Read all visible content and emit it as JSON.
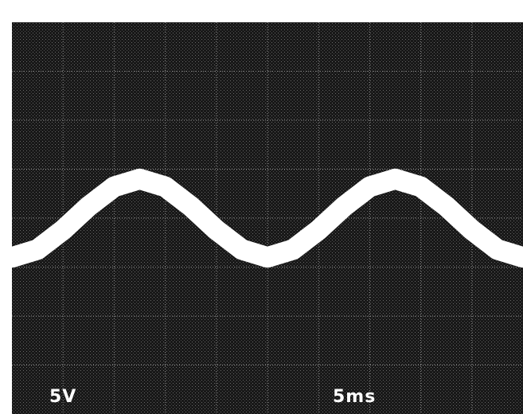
{
  "chart_data": {
    "type": "line",
    "title": "",
    "xlabel": "",
    "ylabel": "",
    "grid": true,
    "grid_divisions": {
      "x": 10,
      "y": 8
    },
    "scale_labels": {
      "vertical": "5V",
      "horizontal": "5ms"
    },
    "xlim": [
      0,
      50
    ],
    "ylim": [
      -20,
      20
    ],
    "series": [
      {
        "x": [
          0,
          2.5,
          5,
          7.5,
          10,
          12.5,
          15,
          17.5,
          20,
          22.5,
          25,
          27.5,
          30,
          32.5,
          35,
          37.5,
          40,
          42.5,
          45,
          47.5,
          50
        ],
        "values": [
          -4.0,
          -3.2,
          -1.2,
          1.2,
          3.2,
          4.0,
          3.2,
          1.2,
          -1.2,
          -3.2,
          -4.0,
          -3.2,
          -1.2,
          1.2,
          3.2,
          4.0,
          3.2,
          1.2,
          -1.2,
          -3.2,
          -4.0
        ]
      }
    ],
    "colors": {
      "screen": "#1a1a1a",
      "trace": "#ffffff",
      "grid": "#8a8a8a"
    }
  }
}
